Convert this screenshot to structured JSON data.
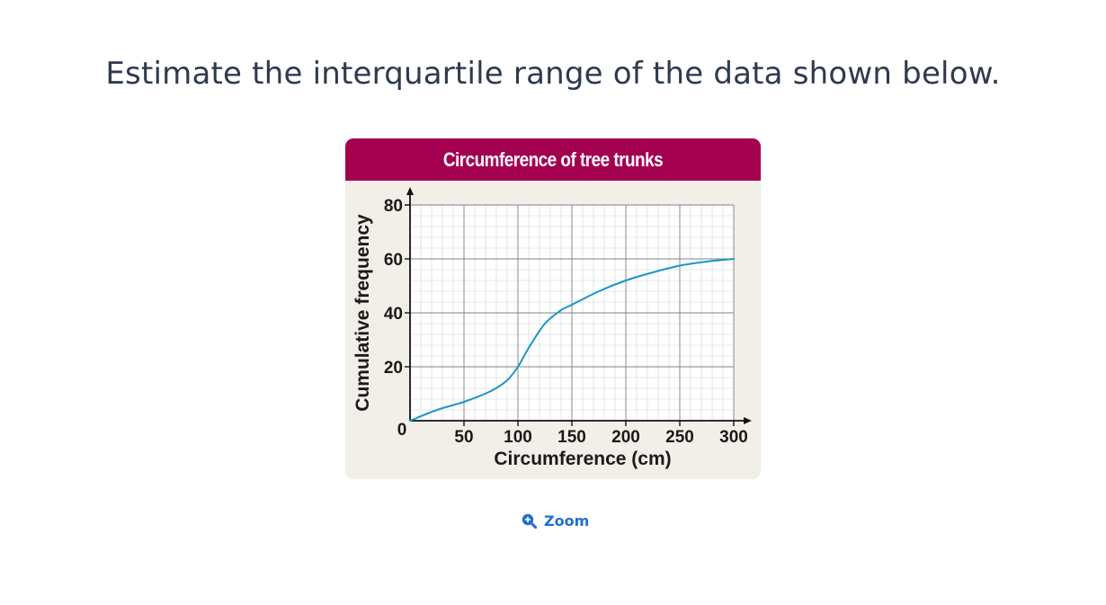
{
  "question": {
    "text": "Estimate the interquartile range of the data shown below."
  },
  "figure": {
    "header_title": "Circumference of tree trunks"
  },
  "zoom": {
    "label": "Zoom",
    "icon": "zoom-in-icon"
  },
  "colors": {
    "header": "#a3004f",
    "panel": "#f2efe9",
    "curve": "#1b95c9",
    "zoom": "#1f6fd1",
    "question_text": "#2f3a4f"
  },
  "chart_data": {
    "type": "line",
    "title": "Circumference of tree trunks",
    "xlabel": "Circumference (cm)",
    "ylabel": "Cumulative frequency",
    "xlim": [
      0,
      300
    ],
    "ylim": [
      0,
      80
    ],
    "x_ticks": [
      {
        "value": 0,
        "label": "0"
      },
      {
        "value": 50,
        "label": "50"
      },
      {
        "value": 100,
        "label": "100"
      },
      {
        "value": 150,
        "label": "150"
      },
      {
        "value": 200,
        "label": "200"
      },
      {
        "value": 250,
        "label": "250"
      },
      {
        "value": 300,
        "label": "300"
      }
    ],
    "y_ticks": [
      {
        "value": 20,
        "label": "20"
      },
      {
        "value": 40,
        "label": "40"
      },
      {
        "value": 60,
        "label": "60"
      },
      {
        "value": 80,
        "label": "80"
      }
    ],
    "grid": true,
    "series": [
      {
        "x": [
          0,
          25,
          50,
          75,
          90,
          100,
          110,
          125,
          140,
          150,
          175,
          200,
          225,
          250,
          275,
          300
        ],
        "values": [
          0,
          4,
          7,
          11,
          15,
          20,
          27,
          36,
          41,
          43,
          48,
          52,
          55,
          57.5,
          59,
          60
        ]
      }
    ]
  }
}
